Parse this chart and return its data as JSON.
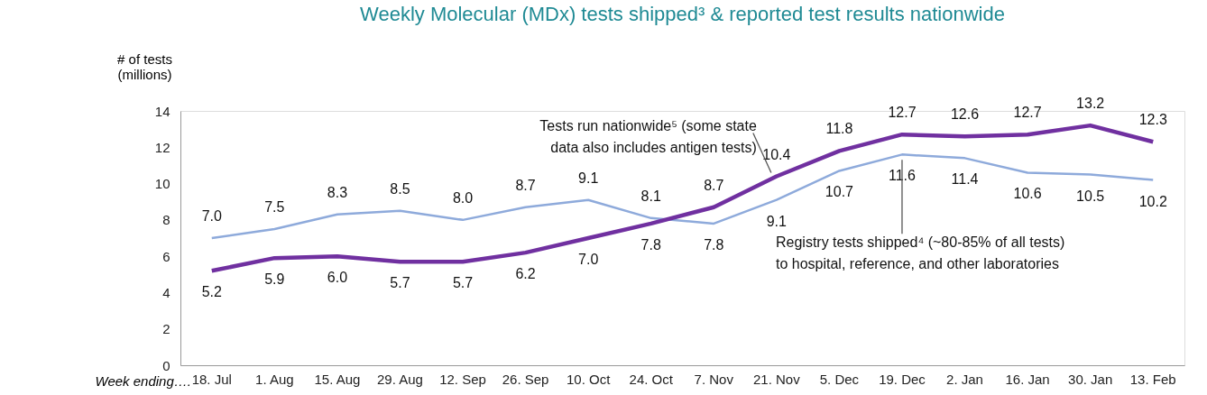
{
  "chart_data": {
    "type": "line",
    "title": "Weekly Molecular (MDx) tests shipped³ & reported test results nationwide",
    "xlabel": "Week ending….",
    "ylabel": "# of tests\n(millions)",
    "categories": [
      "18. Jul",
      "1. Aug",
      "15. Aug",
      "29. Aug",
      "12. Sep",
      "26. Sep",
      "10. Oct",
      "24. Oct",
      "7. Nov",
      "21. Nov",
      "5. Dec",
      "19. Dec",
      "2. Jan",
      "16. Jan",
      "30. Jan",
      "13. Feb"
    ],
    "series": [
      {
        "color": "#8eaadb",
        "values": [
          7.0,
          7.5,
          8.3,
          8.5,
          8.0,
          8.7,
          9.1,
          8.1,
          7.8,
          9.1,
          10.7,
          11.6,
          11.4,
          10.6,
          10.5,
          10.2
        ],
        "value_labels": [
          "7.0",
          "7.5",
          "8.3",
          "8.5",
          "8.0",
          "8.7",
          "9.1",
          "8.1",
          "7.8",
          "9.1",
          "10.7",
          "11.6",
          "11.4",
          "10.6",
          "10.5",
          "10.2"
        ]
      },
      {
        "color": "#7030a0",
        "values": [
          5.2,
          5.9,
          6.0,
          5.7,
          5.7,
          6.2,
          7.0,
          7.8,
          8.7,
          10.4,
          11.8,
          12.7,
          12.6,
          12.7,
          13.2,
          12.3
        ],
        "value_labels": [
          "5.2",
          "5.9",
          "6.0",
          "5.7",
          "5.7",
          "6.2",
          "7.0",
          "7.8",
          "8.7",
          "10.4",
          "11.8",
          "12.7",
          "12.6",
          "12.7",
          "13.2",
          "12.3"
        ]
      }
    ],
    "ylim": [
      0,
      14
    ],
    "yticks": [
      0,
      2,
      4,
      6,
      8,
      10,
      12,
      14
    ],
    "grid": false,
    "marker": "none",
    "annotations": [
      {
        "text": "Tests run nationwide⁵ (some state\ndata also includes antigen tests)",
        "x": "21. Nov",
        "y": 10.4
      },
      {
        "text": "Registry tests shipped⁴ (~80-85% of all tests)\nto hospital, reference, and other laboratories",
        "x": "19. Dec",
        "y": 11.6
      }
    ]
  }
}
